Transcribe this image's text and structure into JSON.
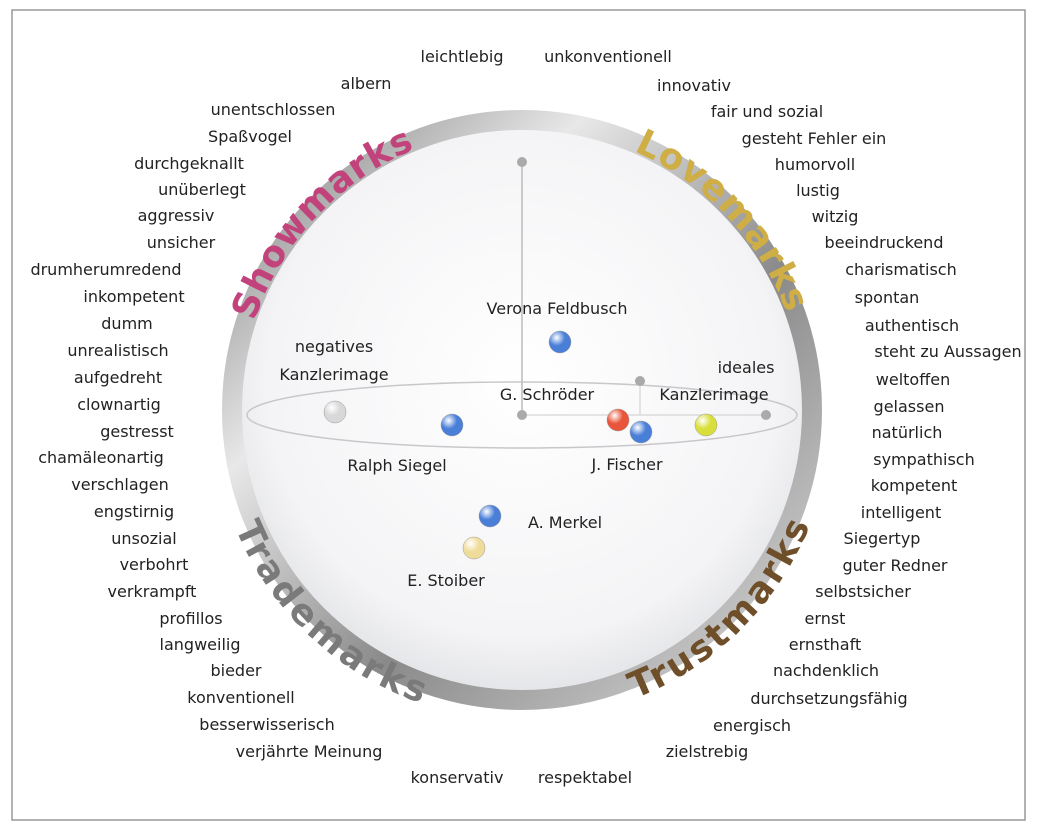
{
  "quadrants": [
    "Showmarks",
    "Lovemarks",
    "Trademarks",
    "Trustmarks"
  ],
  "attributes": {
    "top": [
      "leichtlebig",
      "unkonventionell"
    ],
    "right": [
      "innovativ",
      "fair und sozial",
      "gesteht Fehler ein",
      "humorvoll",
      "lustig",
      "witzig",
      "beeindruckend",
      "charismatisch",
      "spontan",
      "authentisch",
      "steht zu Aussagen",
      "weltoffen",
      "gelassen",
      "natürlich",
      "sympathisch",
      "kompetent",
      "intelligent",
      "Siegertyp",
      "guter Redner",
      "selbstsicher",
      "ernst",
      "ernsthaft",
      "nachdenklich",
      "durchsetzungsfähig",
      "energisch",
      "zielstrebig"
    ],
    "bottom": [
      "konservativ",
      "respektabel"
    ],
    "left": [
      "albern",
      "unentschlossen",
      "Spaßvogel",
      "durchgeknallt",
      "unüberlegt",
      "aggressiv",
      "unsicher",
      "drumherumredend",
      "inkompetent",
      "dumm",
      "unrealistisch",
      "aufgedreht",
      "clownartig",
      "gestresst",
      "chamäleonartig",
      "verschlagen",
      "engstirnig",
      "unsozial",
      "verbohrt",
      "verkrampft",
      "profillos",
      "langweilig",
      "bieder",
      "konventionell",
      "besserwisserisch",
      "verjährte Meinung"
    ]
  },
  "persons": [
    {
      "label_lines": [
        "Verona Feldbusch"
      ]
    },
    {
      "label_lines": [
        "negatives",
        "Kanzlerimage"
      ]
    },
    {
      "label_lines": [
        "Ralph Siegel"
      ]
    },
    {
      "label_lines": [
        "G. Schröder"
      ]
    },
    {
      "label_lines": [
        "J. Fischer"
      ]
    },
    {
      "label_lines": [
        "ideales",
        "Kanzlerimage"
      ]
    },
    {
      "label_lines": [
        "A. Merkel"
      ]
    },
    {
      "label_lines": [
        "E. Stoiber"
      ]
    }
  ]
}
